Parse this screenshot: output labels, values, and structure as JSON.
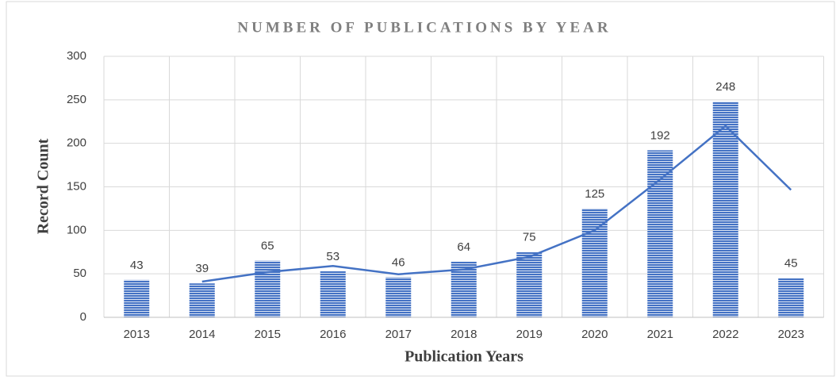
{
  "chart_data": {
    "type": "bar",
    "title": "NUMBER OF PUBLICATIONS BY YEAR",
    "x_label": "Publication Years",
    "y_label": "Record Count",
    "categories": [
      "2013",
      "2014",
      "2015",
      "2016",
      "2017",
      "2018",
      "2019",
      "2020",
      "2021",
      "2022",
      "2023"
    ],
    "series": [
      {
        "type": "bar",
        "color": "#4472c4",
        "values": [
          43,
          39,
          65,
          53,
          46,
          64,
          75,
          125,
          192,
          248,
          45
        ]
      },
      {
        "type": "line",
        "color": "#4472c4",
        "values": [
          null,
          41,
          52,
          59,
          49.5,
          55,
          69.5,
          100,
          158.5,
          220,
          146.5
        ]
      }
    ],
    "ylim": [
      0,
      300
    ],
    "yticks": [
      0,
      50,
      100,
      150,
      200,
      250,
      300
    ],
    "grid": true
  }
}
